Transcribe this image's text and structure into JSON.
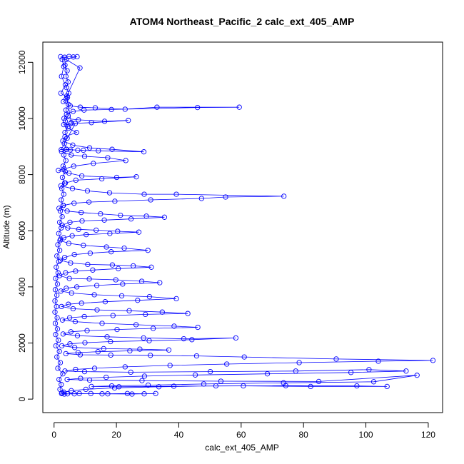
{
  "chart_data": {
    "type": "scatter",
    "title": "ATOM4 Northeast_Pacific_2 calc_ext_405_AMP",
    "xlabel": "calc_ext_405_AMP",
    "ylabel": "Altitude (m)",
    "xlim": [
      -3.6,
      124.6
    ],
    "ylim": [
      -480,
      12720
    ],
    "x_ticks": [
      0,
      20,
      40,
      60,
      80,
      100,
      120
    ],
    "y_ticks": [
      0,
      2000,
      4000,
      6000,
      8000,
      10000,
      12000
    ],
    "grid": false,
    "series": [
      {
        "marker": "open-circle",
        "connected": true,
        "color": "#0000ff",
        "points": [
          [
            2.1,
            12200
          ],
          [
            3.4,
            12180
          ],
          [
            4.8,
            12210
          ],
          [
            6.2,
            12190
          ],
          [
            7.4,
            12200
          ],
          [
            2.6,
            12100
          ],
          [
            3.1,
            11850
          ],
          [
            2.4,
            11500
          ],
          [
            3.6,
            11200
          ],
          [
            2.2,
            10900
          ],
          [
            4.3,
            10750
          ],
          [
            3.0,
            10600
          ],
          [
            5.2,
            10450
          ],
          [
            8.4,
            10400
          ],
          [
            13.2,
            10380
          ],
          [
            22.8,
            10330
          ],
          [
            33.0,
            10400
          ],
          [
            59.4,
            10400
          ],
          [
            46.0,
            10390
          ],
          [
            18.4,
            10320
          ],
          [
            9.6,
            10300
          ],
          [
            6.1,
            10250
          ],
          [
            4.0,
            10150
          ],
          [
            3.2,
            10000
          ],
          [
            7.8,
            9950
          ],
          [
            16.2,
            9900
          ],
          [
            23.8,
            9930
          ],
          [
            12.0,
            9850
          ],
          [
            5.4,
            9820
          ],
          [
            3.1,
            9780
          ],
          [
            4.6,
            9650
          ],
          [
            7.2,
            9500
          ],
          [
            3.5,
            9350
          ],
          [
            2.8,
            9200
          ],
          [
            6.0,
            9050
          ],
          [
            11.4,
            8950
          ],
          [
            18.6,
            8900
          ],
          [
            28.8,
            8810
          ],
          [
            14.2,
            8850
          ],
          [
            7.6,
            8870
          ],
          [
            3.9,
            8900
          ],
          [
            2.4,
            8820
          ],
          [
            5.5,
            8700
          ],
          [
            9.8,
            8650
          ],
          [
            17.2,
            8600
          ],
          [
            23.0,
            8500
          ],
          [
            12.6,
            8400
          ],
          [
            6.3,
            8300
          ],
          [
            3.2,
            8200
          ],
          [
            1.4,
            8150
          ],
          [
            4.8,
            8050
          ],
          [
            8.9,
            7950
          ],
          [
            20.1,
            7900
          ],
          [
            26.4,
            7920
          ],
          [
            15.3,
            7850
          ],
          [
            7.0,
            7800
          ],
          [
            3.6,
            7700
          ],
          [
            2.2,
            7600
          ],
          [
            5.9,
            7500
          ],
          [
            10.7,
            7420
          ],
          [
            17.8,
            7350
          ],
          [
            28.9,
            7300
          ],
          [
            39.2,
            7300
          ],
          [
            73.7,
            7230
          ],
          [
            55.0,
            7200
          ],
          [
            47.3,
            7150
          ],
          [
            31.0,
            7100
          ],
          [
            19.5,
            7050
          ],
          [
            11.2,
            7020
          ],
          [
            6.4,
            6980
          ],
          [
            3.0,
            6900
          ],
          [
            1.6,
            6800
          ],
          [
            4.2,
            6700
          ],
          [
            8.7,
            6650
          ],
          [
            14.9,
            6600
          ],
          [
            21.3,
            6550
          ],
          [
            29.6,
            6520
          ],
          [
            35.4,
            6480
          ],
          [
            24.7,
            6420
          ],
          [
            16.1,
            6380
          ],
          [
            9.0,
            6350
          ],
          [
            5.1,
            6300
          ],
          [
            2.6,
            6200
          ],
          [
            4.4,
            6100
          ],
          [
            7.9,
            6050
          ],
          [
            13.5,
            6020
          ],
          [
            20.4,
            5980
          ],
          [
            27.2,
            5950
          ],
          [
            17.9,
            5900
          ],
          [
            10.3,
            5860
          ],
          [
            5.8,
            5820
          ],
          [
            3.1,
            5750
          ],
          [
            1.9,
            5650
          ],
          [
            4.7,
            5550
          ],
          [
            9.4,
            5480
          ],
          [
            16.8,
            5420
          ],
          [
            22.5,
            5380
          ],
          [
            30.1,
            5300
          ],
          [
            18.3,
            5250
          ],
          [
            11.6,
            5200
          ],
          [
            6.5,
            5150
          ],
          [
            3.4,
            5050
          ],
          [
            2.0,
            4950
          ],
          [
            5.3,
            4850
          ],
          [
            10.8,
            4800
          ],
          [
            18.7,
            4780
          ],
          [
            25.4,
            4750
          ],
          [
            31.2,
            4700
          ],
          [
            20.6,
            4650
          ],
          [
            12.4,
            4600
          ],
          [
            6.9,
            4560
          ],
          [
            3.7,
            4500
          ],
          [
            1.8,
            4400
          ],
          [
            4.9,
            4300
          ],
          [
            11.3,
            4280
          ],
          [
            19.8,
            4250
          ],
          [
            28.1,
            4200
          ],
          [
            33.9,
            4150
          ],
          [
            22.0,
            4100
          ],
          [
            13.7,
            4050
          ],
          [
            7.3,
            4000
          ],
          [
            3.9,
            3950
          ],
          [
            2.2,
            3850
          ],
          [
            5.6,
            3780
          ],
          [
            12.9,
            3720
          ],
          [
            21.7,
            3680
          ],
          [
            30.6,
            3650
          ],
          [
            39.2,
            3580
          ],
          [
            26.8,
            3520
          ],
          [
            16.4,
            3470
          ],
          [
            8.8,
            3420
          ],
          [
            4.6,
            3380
          ],
          [
            2.4,
            3300
          ],
          [
            6.1,
            3220
          ],
          [
            13.8,
            3180
          ],
          [
            24.1,
            3150
          ],
          [
            34.7,
            3100
          ],
          [
            42.9,
            3050
          ],
          [
            29.3,
            3020
          ],
          [
            18.9,
            2980
          ],
          [
            9.7,
            2940
          ],
          [
            5.0,
            2900
          ],
          [
            2.7,
            2820
          ],
          [
            6.8,
            2760
          ],
          [
            15.4,
            2700
          ],
          [
            26.3,
            2650
          ],
          [
            38.5,
            2600
          ],
          [
            46.1,
            2560
          ],
          [
            31.8,
            2520
          ],
          [
            20.2,
            2480
          ],
          [
            10.6,
            2440
          ],
          [
            5.4,
            2400
          ],
          [
            2.9,
            2320
          ],
          [
            7.5,
            2260
          ],
          [
            17.0,
            2220
          ],
          [
            28.7,
            2180
          ],
          [
            41.6,
            2150
          ],
          [
            58.3,
            2180
          ],
          [
            44.2,
            2120
          ],
          [
            30.5,
            2080
          ],
          [
            18.1,
            2050
          ],
          [
            9.9,
            2010
          ],
          [
            5.1,
            1970
          ],
          [
            2.5,
            1900
          ],
          [
            6.6,
            1840
          ],
          [
            15.9,
            1800
          ],
          [
            27.5,
            1780
          ],
          [
            36.8,
            1750
          ],
          [
            24.3,
            1720
          ],
          [
            14.1,
            1690
          ],
          [
            7.7,
            1660
          ],
          [
            3.8,
            1620
          ],
          [
            8.4,
            1580
          ],
          [
            18.2,
            1570
          ],
          [
            30.9,
            1560
          ],
          [
            45.7,
            1540
          ],
          [
            61.0,
            1500
          ],
          [
            90.5,
            1430
          ],
          [
            121.5,
            1380
          ],
          [
            104.0,
            1350
          ],
          [
            78.6,
            1300
          ],
          [
            55.4,
            1250
          ],
          [
            37.2,
            1200
          ],
          [
            22.8,
            1150
          ],
          [
            13.0,
            1100
          ],
          [
            6.9,
            1060
          ],
          [
            3.5,
            1000
          ],
          [
            9.8,
            980
          ],
          [
            24.6,
            960
          ],
          [
            50.1,
            980
          ],
          [
            77.5,
            1000
          ],
          [
            101.0,
            1050
          ],
          [
            112.9,
            1000
          ],
          [
            95.2,
            950
          ],
          [
            68.4,
            900
          ],
          [
            45.3,
            860
          ],
          [
            29.0,
            820
          ],
          [
            16.7,
            780
          ],
          [
            8.5,
            740
          ],
          [
            4.2,
            700
          ],
          [
            11.4,
            680
          ],
          [
            28.2,
            660
          ],
          [
            53.5,
            640
          ],
          [
            84.9,
            630
          ],
          [
            116.4,
            850
          ],
          [
            102.5,
            620
          ],
          [
            73.6,
            580
          ],
          [
            48.0,
            540
          ],
          [
            30.2,
            500
          ],
          [
            18.5,
            470
          ],
          [
            12.0,
            450
          ],
          [
            20.8,
            440
          ],
          [
            38.4,
            460
          ],
          [
            60.7,
            470
          ],
          [
            82.3,
            450
          ],
          [
            106.8,
            450
          ],
          [
            97.1,
            470
          ],
          [
            74.3,
            480
          ],
          [
            51.9,
            470
          ],
          [
            33.6,
            440
          ],
          [
            19.4,
            400
          ],
          [
            10.2,
            350
          ],
          [
            5.5,
            300
          ],
          [
            3.1,
            250
          ],
          [
            2.4,
            200
          ],
          [
            3.3,
            180
          ],
          [
            6.5,
            190
          ],
          [
            11.8,
            200
          ],
          [
            17.2,
            190
          ],
          [
            23.5,
            200
          ],
          [
            28.9,
            190
          ],
          [
            32.6,
            200
          ],
          [
            25.0,
            180
          ],
          [
            15.4,
            190
          ],
          [
            8.1,
            200
          ],
          [
            4.3,
            190
          ],
          [
            2.6,
            220
          ],
          [
            1.9,
            350
          ],
          [
            2.3,
            520
          ],
          [
            1.6,
            700
          ],
          [
            2.8,
            900
          ],
          [
            1.2,
            1100
          ],
          [
            2.0,
            1300
          ],
          [
            0.9,
            1500
          ],
          [
            1.7,
            1700
          ],
          [
            0.6,
            1900
          ],
          [
            1.4,
            2100
          ],
          [
            0.5,
            2300
          ],
          [
            1.1,
            2500
          ],
          [
            0.4,
            2700
          ],
          [
            1.0,
            2900
          ],
          [
            0.3,
            3100
          ],
          [
            0.8,
            3300
          ],
          [
            0.3,
            3500
          ],
          [
            0.9,
            3700
          ],
          [
            0.4,
            3900
          ],
          [
            1.1,
            4100
          ],
          [
            0.5,
            4300
          ],
          [
            1.3,
            4500
          ],
          [
            0.7,
            4700
          ],
          [
            1.5,
            4900
          ],
          [
            0.9,
            5100
          ],
          [
            1.8,
            5300
          ],
          [
            1.2,
            5500
          ],
          [
            2.1,
            5700
          ],
          [
            1.5,
            5900
          ],
          [
            2.3,
            6100
          ],
          [
            1.8,
            6300
          ],
          [
            2.6,
            6500
          ],
          [
            2.0,
            6700
          ],
          [
            2.9,
            6900
          ],
          [
            2.3,
            7100
          ],
          [
            3.1,
            7300
          ],
          [
            2.5,
            7500
          ],
          [
            3.4,
            7700
          ],
          [
            2.7,
            7900
          ],
          [
            3.6,
            8100
          ],
          [
            2.9,
            8300
          ],
          [
            3.8,
            8500
          ],
          [
            3.1,
            8700
          ],
          [
            4.0,
            8900
          ],
          [
            3.3,
            9100
          ],
          [
            4.2,
            9300
          ],
          [
            3.5,
            9500
          ],
          [
            4.4,
            9700
          ],
          [
            3.6,
            9900
          ],
          [
            4.5,
            10100
          ],
          [
            3.8,
            10300
          ],
          [
            4.6,
            10500
          ],
          [
            3.9,
            10700
          ],
          [
            4.7,
            10900
          ],
          [
            4.0,
            11100
          ],
          [
            4.5,
            11300
          ],
          [
            3.8,
            11500
          ],
          [
            4.2,
            11700
          ],
          [
            3.5,
            11900
          ],
          [
            3.9,
            12100
          ],
          [
            8.3,
            11800
          ],
          [
            4.1,
            10800
          ],
          [
            5.5,
            9850
          ],
          [
            6.8,
            9820
          ],
          [
            2.3,
            8890
          ],
          [
            5.2,
            8880
          ],
          [
            9.4,
            8870
          ]
        ]
      }
    ]
  }
}
